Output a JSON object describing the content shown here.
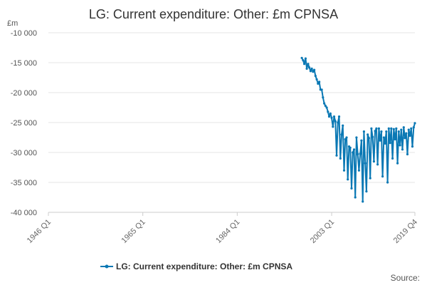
{
  "chart_data": {
    "type": "line",
    "title": "LG: Current expenditure: Other: £m CPNSA",
    "ylabel": "£m",
    "ylim": [
      -40000,
      -10000
    ],
    "yticks": [
      -10000,
      -15000,
      -20000,
      -25000,
      -30000,
      -35000,
      -40000
    ],
    "ytick_labels": [
      "-10 000",
      "-15 000",
      "-20 000",
      "-25 000",
      "-30 000",
      "-35 000",
      "-40 000"
    ],
    "xlim": [
      1946.0,
      2019.75
    ],
    "xticks": [
      1946.0,
      1965.0,
      1984.0,
      2003.0,
      2019.75
    ],
    "xtick_labels": [
      "1946 Q1",
      "1965 Q1",
      "1984 Q1",
      "2003 Q1",
      "2019 Q4"
    ],
    "grid": "horizontal",
    "legend_position": "bottom",
    "series": [
      {
        "name": "LG: Current expenditure: Other: £m CPNSA",
        "color": "#0a78b4",
        "x": [
          1997.0,
          1997.25,
          1997.5,
          1997.75,
          1998.0,
          1998.25,
          1998.5,
          1998.75,
          1999.0,
          1999.25,
          1999.5,
          1999.75,
          2000.0,
          2000.25,
          2000.5,
          2000.75,
          2001.0,
          2001.25,
          2001.5,
          2001.75,
          2002.0,
          2002.25,
          2002.5,
          2002.75,
          2003.0,
          2003.25,
          2003.5,
          2003.75,
          2004.0,
          2004.25,
          2004.5,
          2004.75,
          2005.0,
          2005.25,
          2005.5,
          2005.75,
          2006.0,
          2006.25,
          2006.5,
          2006.75,
          2007.0,
          2007.25,
          2007.5,
          2007.75,
          2008.0,
          2008.25,
          2008.5,
          2008.75,
          2009.0,
          2009.25,
          2009.5,
          2009.75,
          2010.0,
          2010.25,
          2010.5,
          2010.75,
          2011.0,
          2011.25,
          2011.5,
          2011.75,
          2012.0,
          2012.25,
          2012.5,
          2012.75,
          2013.0,
          2013.25,
          2013.5,
          2013.75,
          2014.0,
          2014.25,
          2014.5,
          2014.75,
          2015.0,
          2015.25,
          2015.5,
          2015.75,
          2016.0,
          2016.25,
          2016.5,
          2016.75,
          2017.0,
          2017.25,
          2017.5,
          2017.75,
          2018.0,
          2018.25,
          2018.5,
          2018.75,
          2019.0,
          2019.25,
          2019.5,
          2019.75
        ],
        "y": [
          -14200,
          -14600,
          -15200,
          -14300,
          -16000,
          -15200,
          -15800,
          -16400,
          -16000,
          -16500,
          -16200,
          -17200,
          -17800,
          -18500,
          -18200,
          -19500,
          -19500,
          -20800,
          -21800,
          -22200,
          -22500,
          -23200,
          -24000,
          -23500,
          -24200,
          -25700,
          -24000,
          -24800,
          -30500,
          -25000,
          -24000,
          -31000,
          -27000,
          -25500,
          -33000,
          -27800,
          -27500,
          -34500,
          -29000,
          -29200,
          -36000,
          -30000,
          -29500,
          -37500,
          -27500,
          -30300,
          -33000,
          -30200,
          -28000,
          -38200,
          -26500,
          -31800,
          -36500,
          -27000,
          -27600,
          -34300,
          -26000,
          -27400,
          -31500,
          -26400,
          -26000,
          -32000,
          -26000,
          -28000,
          -26500,
          -34000,
          -27500,
          -28500,
          -26500,
          -35000,
          -26000,
          -28400,
          -26000,
          -31000,
          -26100,
          -27800,
          -26000,
          -31800,
          -26500,
          -28800,
          -26200,
          -29500,
          -25800,
          -27600,
          -26800,
          -30300,
          -26200,
          -27200,
          -26000,
          -29000,
          -25800,
          -25100
        ]
      }
    ]
  },
  "source_label": "Source:"
}
